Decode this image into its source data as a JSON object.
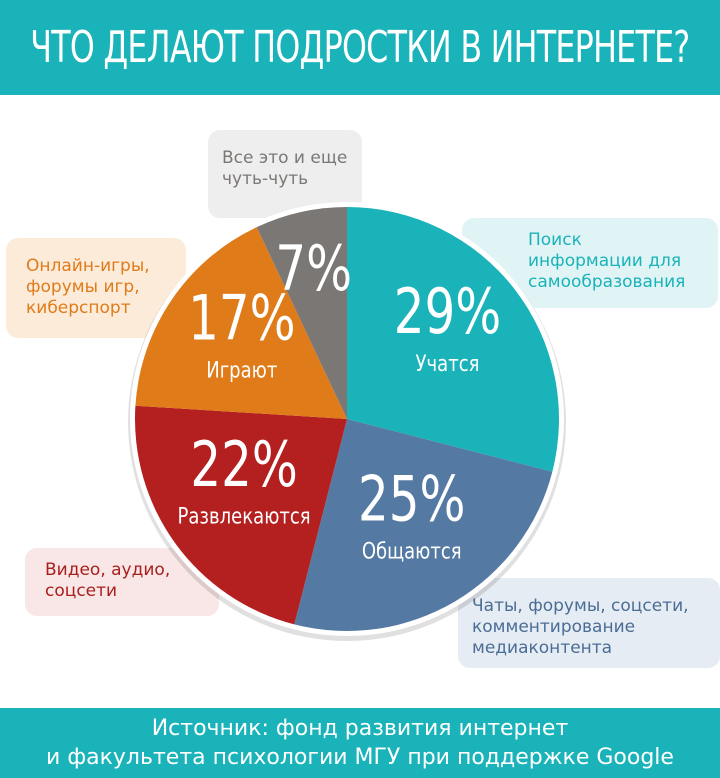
{
  "header": {
    "title": "ЧТО ДЕЛАЮТ ПОДРОСТКИ В ИНТЕРНЕТЕ?"
  },
  "chart_data": {
    "type": "pie",
    "title": "ЧТО ДЕЛАЮТ ПОДРОСТКИ В ИНТЕРНЕТЕ?",
    "slices": [
      {
        "value": 29,
        "label": "29%",
        "category": "Учатся",
        "description": "Поиск\nинформации для\nсамообразования",
        "color": "#1ab3b9"
      },
      {
        "value": 25,
        "label": "25%",
        "category": "Общаются",
        "description": "Чаты, форумы, соцсети,\nкомментирование\nмедиаконтента",
        "color": "#5479a3"
      },
      {
        "value": 22,
        "label": "22%",
        "category": "Развлекаются",
        "description": "Видео, аудио,\nсоцсети",
        "color": "#b41f1f"
      },
      {
        "value": 17,
        "label": "17%",
        "category": "Играют",
        "description": "Онлайн-игры,\nфорумы игр,\nкиберспорт",
        "color": "#e07b1a"
      },
      {
        "value": 7,
        "label": "7%",
        "category": "",
        "description": "Все это и еще\nчуть-чуть",
        "color": "#7a7775"
      }
    ],
    "legend": "callouts"
  },
  "callout_colors": {
    "text": [
      "#1ab3b9",
      "#4a6d96",
      "#a8201e",
      "#e07b1a",
      "#7a7775"
    ],
    "bg": [
      "#e0f4f5",
      "#e6ecf3",
      "#f9e6e6",
      "#fcebd9",
      "#eeeeee"
    ]
  },
  "footer": {
    "line1": "Источник: фонд развития интернет",
    "line2": "и факультета психологии МГУ при поддержке Google"
  }
}
